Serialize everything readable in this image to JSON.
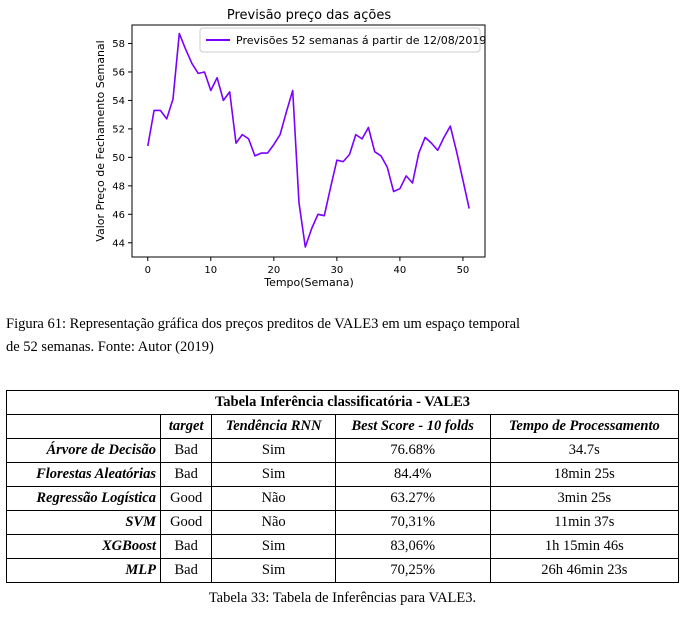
{
  "chart_data": {
    "type": "line",
    "title": "Previsão preço das ações",
    "xlabel": "Tempo(Semana)",
    "ylabel": "Valor Preço de Fechamento Semanal",
    "xlim": [
      -2.5,
      53.5
    ],
    "ylim": [
      43,
      59.3
    ],
    "xticks": [
      0,
      10,
      20,
      30,
      40,
      50
    ],
    "yticks": [
      44,
      46,
      48,
      50,
      52,
      54,
      56,
      58
    ],
    "legend_position": "upper-right",
    "series": [
      {
        "name": "Previsões 52 semanas á partir de 12/08/2019",
        "color": "#7a00ff",
        "x": [
          0,
          1,
          2,
          3,
          4,
          5,
          6,
          7,
          8,
          9,
          10,
          11,
          12,
          13,
          14,
          15,
          16,
          17,
          18,
          19,
          20,
          21,
          22,
          23,
          24,
          25,
          26,
          27,
          28,
          29,
          30,
          31,
          32,
          33,
          34,
          35,
          36,
          37,
          38,
          39,
          40,
          41,
          42,
          43,
          44,
          45,
          46,
          47,
          48,
          49,
          50,
          51
        ],
        "values": [
          50.8,
          53.3,
          53.3,
          52.7,
          54.1,
          58.7,
          57.6,
          56.6,
          55.9,
          56.0,
          54.7,
          55.6,
          54.0,
          54.6,
          51.0,
          51.6,
          51.3,
          50.1,
          50.3,
          50.3,
          50.9,
          51.6,
          53.2,
          54.7,
          46.8,
          43.7,
          45.0,
          46.0,
          45.9,
          47.9,
          49.8,
          49.7,
          50.2,
          51.6,
          51.3,
          52.1,
          50.4,
          50.1,
          49.3,
          47.6,
          47.8,
          48.7,
          48.2,
          50.3,
          51.4,
          51.0,
          50.5,
          51.4,
          52.2,
          50.4,
          48.4,
          46.4
        ]
      }
    ]
  },
  "figure_caption": {
    "line1": "Figura 61: Representação gráfica dos preços preditos de VALE3 em um espaço temporal",
    "line2": "de 52 semanas. Fonte: Autor (2019)"
  },
  "table": {
    "title": "Tabela Inferência classificatória - VALE3",
    "headers": [
      "target",
      "Tendência RNN",
      "Best Score - 10 folds",
      "Tempo de Processamento"
    ],
    "rows": [
      {
        "name": "Árvore de Decisão",
        "target": "Bad",
        "trend": "Sim",
        "score": "76.68%",
        "time": "34.7s"
      },
      {
        "name": "Florestas Aleatórias",
        "target": "Bad",
        "trend": "Sim",
        "score": "84.4%",
        "time": "18min 25s"
      },
      {
        "name": "Regressão Logística",
        "target": "Good",
        "trend": "Não",
        "score": "63.27%",
        "time": "3min 25s"
      },
      {
        "name": "SVM",
        "target": "Good",
        "trend": "Não",
        "score": "70,31%",
        "time": "11min 37s"
      },
      {
        "name": "XGBoost",
        "target": "Bad",
        "trend": "Sim",
        "score": "83,06%",
        "time": "1h 15min 46s"
      },
      {
        "name": "MLP",
        "target": "Bad",
        "trend": "Sim",
        "score": "70,25%",
        "time": "26h 46min 23s"
      }
    ],
    "caption": "Tabela 33: Tabela de Inferências para VALE3."
  }
}
